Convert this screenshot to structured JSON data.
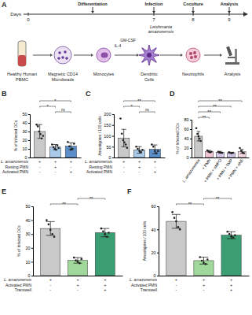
{
  "diagram": {
    "panel": "A",
    "timeline": {
      "label": "Days",
      "days": [
        "0",
        "7",
        "8",
        "9"
      ],
      "events": [
        "Differentiation",
        "Infection",
        "Coculture",
        "Analysis"
      ]
    },
    "stages": [
      [
        "Healthy Human",
        "PBMC"
      ],
      [
        "Magnetic CD14",
        "Microbeads"
      ],
      [
        "Monocytes"
      ],
      [
        "Dendritic",
        "Cells"
      ],
      [
        "Neutrophils"
      ],
      [
        "Analysis"
      ]
    ],
    "cytokines": [
      "IL-4",
      "GM-CSF"
    ],
    "pathogen": [
      "Leishmania",
      "amazonensis"
    ]
  },
  "chart_data": [
    {
      "panel": "B",
      "type": "bar",
      "ylabel": "% of Infected DCs",
      "categories": [
        null,
        null,
        null
      ],
      "values": [
        30,
        12,
        13
      ],
      "errors": [
        8,
        3,
        4
      ],
      "points": [
        [
          38,
          36,
          30,
          27,
          22,
          25
        ],
        [
          15,
          12,
          10,
          9,
          14,
          11
        ],
        [
          18,
          13,
          9,
          10,
          16
        ]
      ],
      "colors": [
        "#c9c9c9",
        "#a9c9e9",
        "#5b8fc9"
      ],
      "ylim": [
        0,
        50
      ],
      "yticks": [
        0,
        10,
        20,
        30,
        40,
        50
      ],
      "significance": [
        {
          "pair": [
            1,
            2
          ],
          "label": "ns"
        },
        {
          "pair": [
            0,
            1
          ],
          "label": "*"
        },
        {
          "pair": [
            0,
            2
          ],
          "label": "*"
        }
      ],
      "condition_table": [
        {
          "label": "L. amazonensis",
          "signs": [
            "+",
            "+",
            "+"
          ]
        },
        {
          "label": "Resting PMN",
          "signs": [
            "-",
            "+",
            "-"
          ]
        },
        {
          "label": "Activated PMN",
          "signs": [
            "-",
            "-",
            "+"
          ]
        }
      ]
    },
    {
      "panel": "C",
      "type": "bar",
      "ylabel": "Amastigotes / 100 cells",
      "categories": [
        null,
        null,
        null
      ],
      "values": [
        90,
        35,
        38
      ],
      "errors": [
        40,
        15,
        20
      ],
      "points": [
        [
          180,
          110,
          80,
          70,
          60,
          45
        ],
        [
          50,
          40,
          30,
          25,
          35
        ],
        [
          60,
          50,
          30,
          20,
          30
        ]
      ],
      "colors": [
        "#c9c9c9",
        "#a9c9e9",
        "#5b8fc9"
      ],
      "ylim": [
        0,
        200
      ],
      "yticks": [
        0,
        50,
        100,
        150,
        200
      ],
      "significance": [
        {
          "pair": [
            1,
            2
          ],
          "label": "ns"
        },
        {
          "pair": [
            0,
            1
          ],
          "label": "*"
        },
        {
          "pair": [
            0,
            2
          ],
          "label": "**"
        }
      ],
      "condition_table": [
        {
          "label": "L. amazonensis",
          "signs": [
            "+",
            "+",
            "+"
          ]
        },
        {
          "label": "Resting PMN",
          "signs": [
            "-",
            "+",
            "-"
          ]
        },
        {
          "label": "Activated PMN",
          "signs": [
            "-",
            "-",
            "+"
          ]
        }
      ]
    },
    {
      "panel": "D",
      "type": "bar",
      "ylabel": "% of Infected DCs",
      "categories": [
        "L. amazonensis",
        "+ PMN",
        "+ PMN + αMPO",
        "+ PMN + TMP",
        "+ PMN + αNE"
      ],
      "values": [
        45,
        13,
        11,
        10,
        13
      ],
      "errors": [
        10,
        2,
        2,
        1,
        4
      ],
      "points": [
        [
          62,
          50,
          45,
          40,
          35
        ],
        [
          15,
          13,
          11,
          12
        ],
        [
          12,
          11,
          10,
          10
        ],
        [
          11,
          10,
          9,
          10
        ],
        [
          20,
          14,
          10,
          9
        ]
      ],
      "colors": [
        "#c9c9c9",
        "#f4c5d6",
        "#d6c8e8",
        "#cfc5e6",
        "#f2d4de"
      ],
      "ylim": [
        0,
        80
      ],
      "yticks": [
        0,
        20,
        40,
        60,
        80
      ],
      "significance": [
        {
          "pair": [
            0,
            1
          ],
          "label": "**"
        },
        {
          "pair": [
            0,
            2
          ],
          "label": "**"
        },
        {
          "pair": [
            0,
            3
          ],
          "label": "**"
        },
        {
          "pair": [
            0,
            4
          ],
          "label": "**"
        }
      ]
    },
    {
      "panel": "E",
      "type": "bar",
      "ylabel": "% of Infected DCs",
      "categories": [
        null,
        null,
        null
      ],
      "values": [
        34,
        11,
        31
      ],
      "errors": [
        5,
        2,
        3
      ],
      "points": [
        [
          40,
          37,
          33,
          30,
          28
        ],
        [
          13,
          11,
          10,
          9,
          12
        ],
        [
          34,
          32,
          30,
          28,
          31
        ]
      ],
      "colors": [
        "#c9c9c9",
        "#9fd89a",
        "#3a9e72"
      ],
      "ylim": [
        0,
        50
      ],
      "yticks": [
        0,
        10,
        20,
        30,
        40,
        50
      ],
      "significance": [
        {
          "pair": [
            0,
            1
          ],
          "label": "**"
        },
        {
          "pair": [
            1,
            2
          ],
          "label": "**"
        }
      ],
      "condition_table": [
        {
          "label": "L. amazonensis",
          "signs": [
            "+",
            "+",
            "+"
          ]
        },
        {
          "label": "Activated PMN",
          "signs": [
            "-",
            "+",
            "+"
          ]
        },
        {
          "label": "Transwell",
          "signs": [
            "-",
            "-",
            "+"
          ]
        }
      ]
    },
    {
      "panel": "F",
      "type": "bar",
      "ylabel": "Amastigotes / 100 cells",
      "categories": [
        null,
        null,
        null
      ],
      "values": [
        47,
        13,
        35
      ],
      "errors": [
        6,
        3,
        3
      ],
      "points": [
        [
          55,
          50,
          47,
          42,
          40
        ],
        [
          16,
          13,
          11,
          10,
          14
        ],
        [
          38,
          36,
          34,
          33,
          35
        ]
      ],
      "colors": [
        "#c9c9c9",
        "#9fd89a",
        "#3a9e72"
      ],
      "ylim": [
        0,
        60
      ],
      "yticks": [
        0,
        20,
        40,
        60
      ],
      "significance": [
        {
          "pair": [
            0,
            1
          ],
          "label": "**"
        },
        {
          "pair": [
            1,
            2
          ],
          "label": "**"
        }
      ],
      "condition_table": [
        {
          "label": "L. amazonensis",
          "signs": [
            "+",
            "+",
            "+"
          ]
        },
        {
          "label": "Activated PMN",
          "signs": [
            "-",
            "+",
            "+"
          ]
        },
        {
          "label": "Transwell",
          "signs": [
            "-",
            "-",
            "+"
          ]
        }
      ]
    }
  ]
}
